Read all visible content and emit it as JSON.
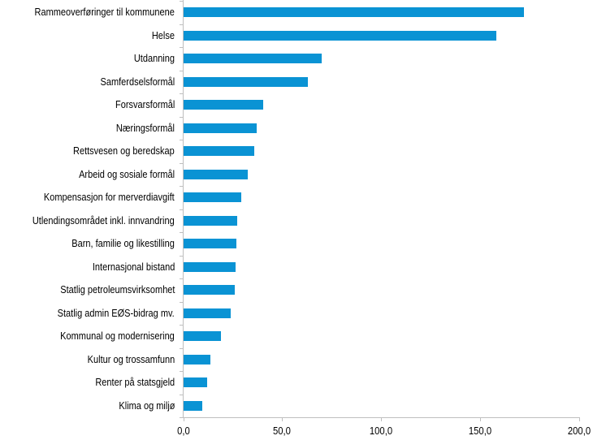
{
  "chart_data": {
    "type": "bar",
    "orientation": "horizontal",
    "title": "",
    "xlabel": "",
    "ylabel": "",
    "xlim": [
      0,
      200
    ],
    "x_ticks": [
      "0,0",
      "50,0",
      "100,0",
      "150,0",
      "200,0"
    ],
    "x_tick_values": [
      0,
      50,
      100,
      150,
      200
    ],
    "grid": false,
    "legend": null,
    "bar_color": "#0A93D4",
    "categories": [
      "Rammeoverføringer til kommunene",
      "Helse",
      "Utdanning",
      "Samferdselsformål",
      "Forsvarsformål",
      "Næringsformål",
      "Rettsvesen og beredskap",
      "Arbeid og sosiale formål",
      "Kompensasjon for merverdiavgift",
      "Utlendingsområdet inkl. innvandring",
      "Barn, familie og likestilling",
      "Internasjonal bistand",
      "Statlig petroleumsvirksomhet",
      "Statlig admin EØS-bidrag mv.",
      "Kommunal og modernisering",
      "Kultur og trossamfunn",
      "Renter på statsgjeld",
      "Klima og miljø"
    ],
    "values": [
      172.2,
      158.2,
      69.8,
      62.7,
      40.1,
      37.0,
      35.6,
      32.3,
      29.0,
      27.2,
      26.8,
      26.2,
      25.7,
      24.0,
      18.7,
      13.5,
      11.9,
      9.4
    ]
  }
}
